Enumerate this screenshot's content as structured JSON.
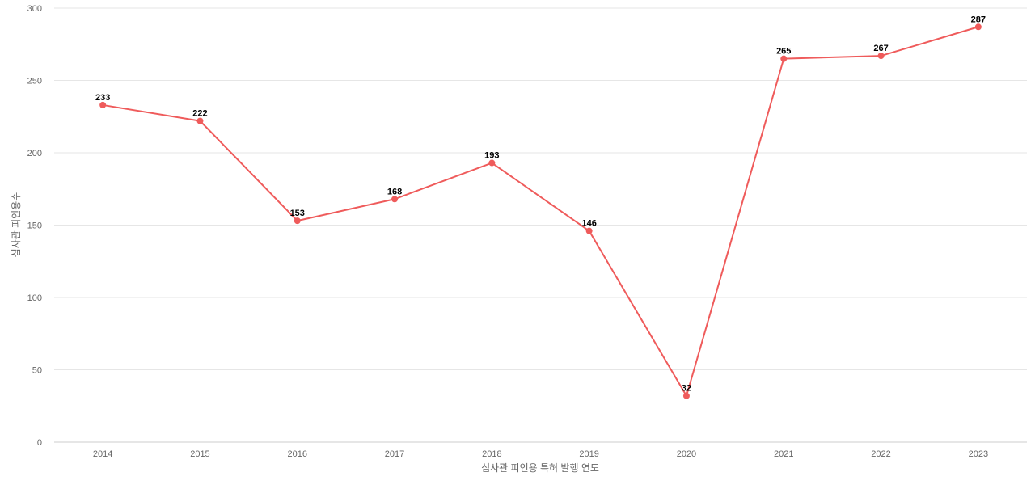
{
  "chart_data": {
    "type": "line",
    "title": "",
    "xlabel": "심사관 피인용 특허 발행 연도",
    "ylabel": "심사관 피인용수",
    "ylim": [
      0,
      300
    ],
    "yticks": [
      0,
      50,
      100,
      150,
      200,
      250,
      300
    ],
    "grid": true,
    "legend": "none",
    "categories": [
      "2014",
      "2015",
      "2016",
      "2017",
      "2018",
      "2019",
      "2020",
      "2021",
      "2022",
      "2023"
    ],
    "series": [
      {
        "color": "#ef5b5b",
        "values": [
          233,
          222,
          153,
          168,
          193,
          146,
          32,
          265,
          267,
          287
        ]
      }
    ]
  }
}
